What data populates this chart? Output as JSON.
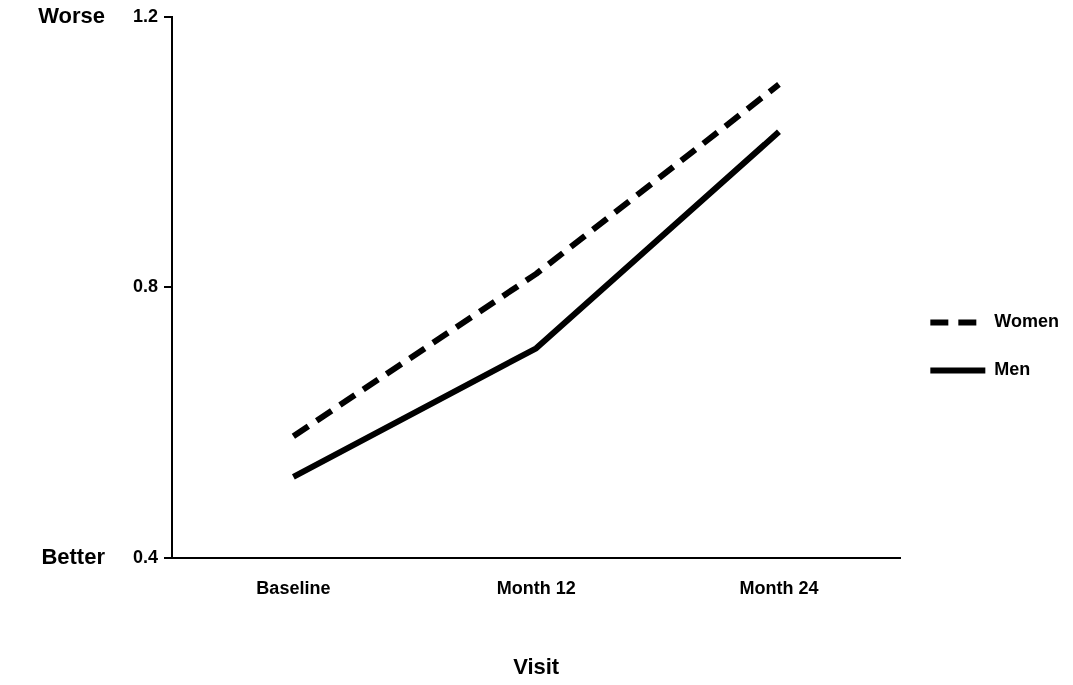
{
  "chart_data": {
    "type": "line",
    "xlabel": "Visit",
    "categories": [
      "Baseline",
      "Month 12",
      "Month 24"
    ],
    "series": [
      {
        "name": "Women",
        "color": "#000000",
        "line_style": "dashed",
        "values": [
          0.58,
          0.82,
          1.1
        ]
      },
      {
        "name": "Men",
        "color": "#000000",
        "line_style": "solid",
        "values": [
          0.52,
          0.71,
          1.03
        ]
      }
    ],
    "ylim": [
      0.4,
      1.2
    ],
    "yticks": [
      0.4,
      0.8,
      1.2
    ],
    "grid": false,
    "legend": "right",
    "marker": "none",
    "annotations": [
      "Worse",
      "Better"
    ]
  }
}
